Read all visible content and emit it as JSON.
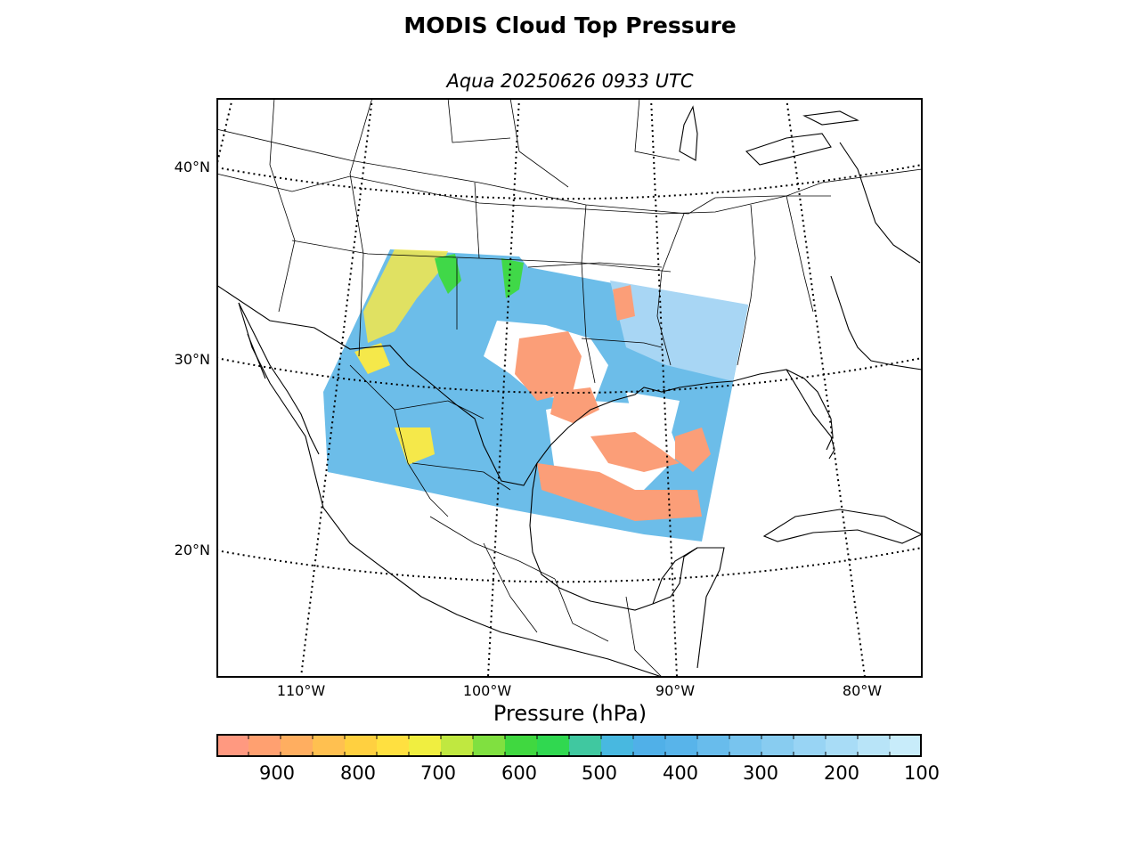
{
  "title": "MODIS Cloud Top Pressure",
  "subtitle": "Aqua 20250626 0933 UTC",
  "map": {
    "lat_labels": [
      "40°N",
      "30°N",
      "20°N"
    ],
    "lon_labels": [
      "110°W",
      "100°W",
      "90°W",
      "80°W"
    ]
  },
  "colorbar": {
    "title": "Pressure (hPa)",
    "tick_labels": [
      "900",
      "800",
      "700",
      "600",
      "500",
      "400",
      "300",
      "200",
      "100"
    ],
    "range": [
      975,
      100
    ],
    "colors": [
      "#ff9980",
      "#ffa070",
      "#ffae60",
      "#ffc050",
      "#ffd040",
      "#ffe040",
      "#f0ee40",
      "#c0e840",
      "#80e040",
      "#40d840",
      "#30d850",
      "#40c8a0",
      "#48b8e0",
      "#50b0e8",
      "#58b4ea",
      "#68bcec",
      "#78c4ee",
      "#88ccf0",
      "#98d4f4",
      "#a8dcf6",
      "#b8e4f8",
      "#c8ecfa"
    ]
  },
  "chart_data": {
    "type": "heatmap",
    "title": "MODIS Cloud Top Pressure",
    "subtitle": "Aqua 20250626 0933 UTC",
    "colorbar_label": "Pressure (hPa)",
    "colorbar_range": [
      975,
      100
    ],
    "colorbar_ticks": [
      900,
      800,
      700,
      600,
      500,
      400,
      300,
      200,
      100
    ],
    "latitudes_labeled": [
      40,
      30,
      20
    ],
    "longitudes_labeled": [
      -110,
      -100,
      -90,
      -80
    ],
    "grid": true
  }
}
